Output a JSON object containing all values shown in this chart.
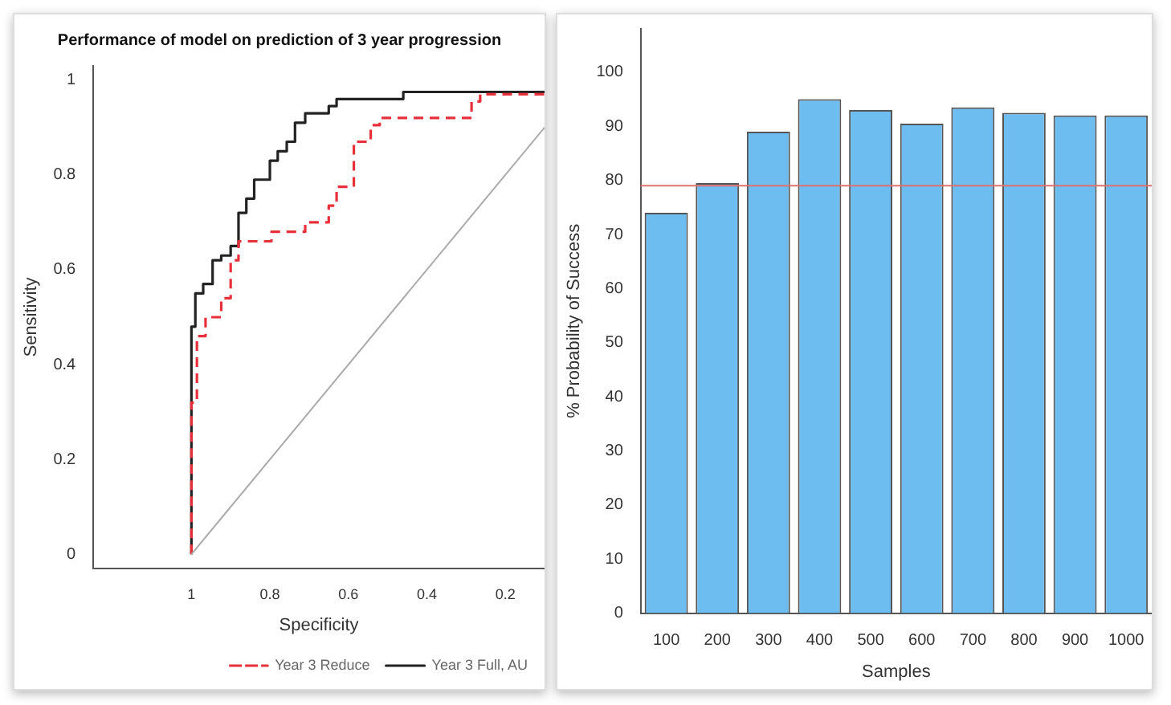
{
  "chart_data": [
    {
      "type": "step",
      "title": "Performance of model on prediction of 3 year progression",
      "xlabel": "Specificity",
      "ylabel": "Sensitivity",
      "xlim": [
        1.25,
        0.1
      ],
      "xticks": [
        1.0,
        0.8,
        0.6,
        0.4,
        0.2
      ],
      "ylim": [
        -0.03,
        1.03
      ],
      "yticks": [
        0.0,
        0.2,
        0.4,
        0.6,
        0.8,
        1.0
      ],
      "grid": false,
      "legend": "bottom right",
      "marker": "none",
      "series": [
        {
          "name": "Year 3 Full, AU",
          "color": "#222222",
          "line_style": "solid",
          "x": [
            1.0,
            1.0,
            0.99,
            0.97,
            0.946,
            0.924,
            0.9,
            0.88,
            0.86,
            0.84,
            0.8,
            0.78,
            0.757,
            0.736,
            0.71,
            0.65,
            0.63,
            0.46,
            0.38,
            0.1
          ],
          "values": [
            0,
            0.32,
            0.48,
            0.55,
            0.57,
            0.62,
            0.63,
            0.65,
            0.72,
            0.75,
            0.79,
            0.83,
            0.85,
            0.87,
            0.91,
            0.93,
            0.945,
            0.96,
            0.975,
            0.975
          ]
        },
        {
          "name": "Year 3 Reduce",
          "color": "#e8303a",
          "line_style": "dashed",
          "x": [
            1.0,
            1.0,
            0.986,
            0.964,
            0.924,
            0.9,
            0.88,
            0.796,
            0.71,
            0.65,
            0.63,
            0.586,
            0.543,
            0.52,
            0.286,
            0.264,
            0.23,
            0.1
          ],
          "values": [
            0,
            0.23,
            0.32,
            0.46,
            0.5,
            0.54,
            0.62,
            0.66,
            0.68,
            0.7,
            0.735,
            0.775,
            0.87,
            0.905,
            0.92,
            0.955,
            0.97,
            0.97
          ]
        },
        {
          "type": "line",
          "color": "#aaaaaa",
          "line_style": "solid",
          "x": [
            1.0,
            0.1
          ],
          "values": [
            0,
            0.9
          ]
        }
      ]
    },
    {
      "type": "bar",
      "xlabel": "Samples",
      "ylabel": "% Probability of Success",
      "categories": [
        "100",
        "200",
        "300",
        "400",
        "500",
        "600",
        "700",
        "800",
        "900",
        "1000"
      ],
      "values": [
        74,
        79.5,
        89,
        95,
        93,
        90.5,
        93.5,
        92.5,
        92,
        92
      ],
      "color": "#6ebdf0",
      "ylim": [
        0,
        108
      ],
      "yticks": [
        0,
        10,
        20,
        30,
        40,
        50,
        60,
        70,
        80,
        90,
        100
      ],
      "grid": false,
      "legend": false,
      "ref_lines": [
        {
          "axis": "y",
          "value": 79,
          "color": "#e07070"
        }
      ]
    }
  ]
}
